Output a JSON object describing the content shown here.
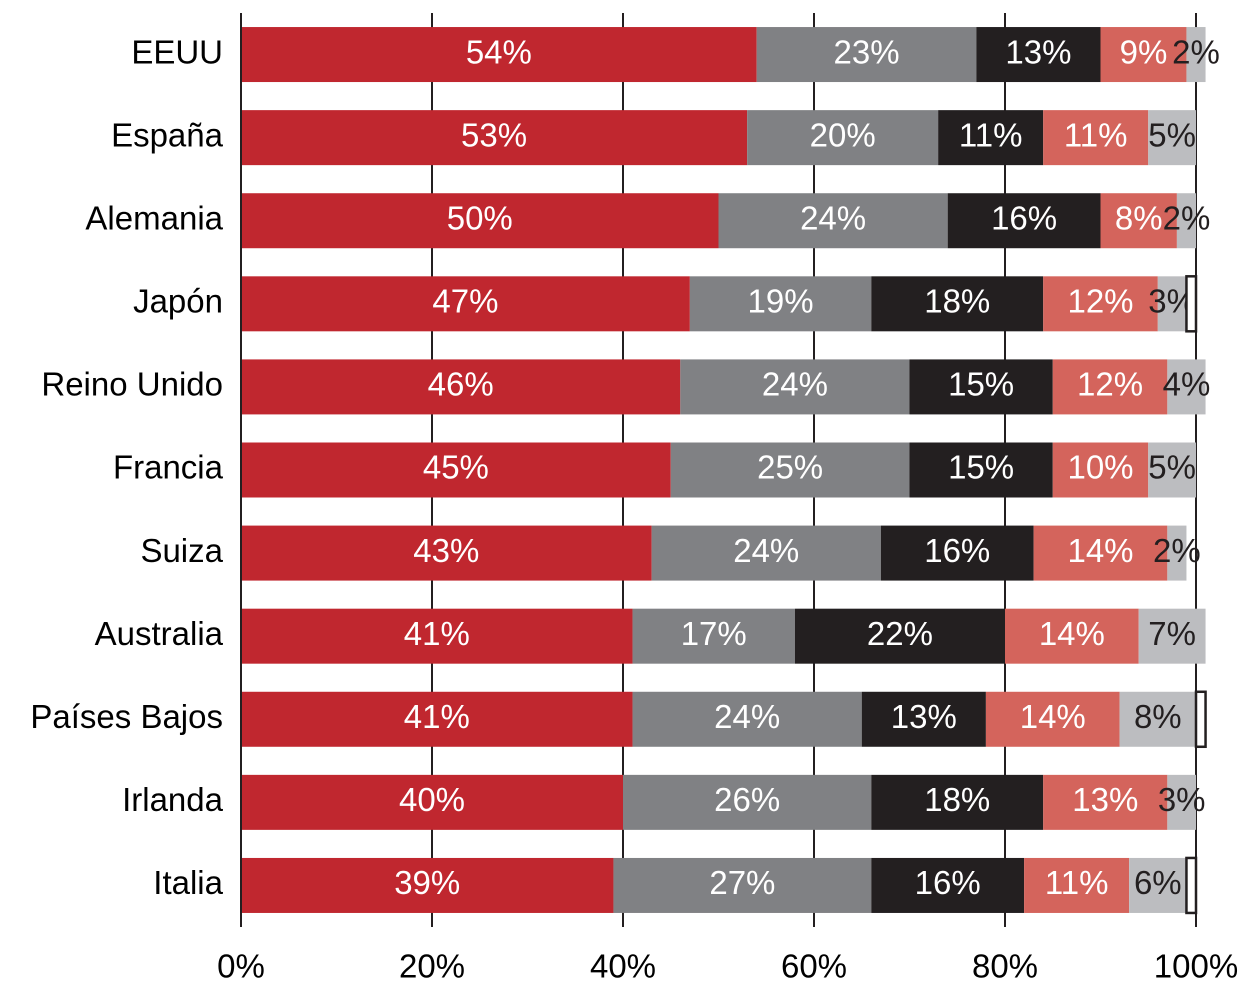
{
  "chart_data": {
    "type": "stacked_bar_horizontal",
    "categories": [
      "EEUU",
      "España",
      "Alemania",
      "Japón",
      "Reino Unido",
      "Francia",
      "Suiza",
      "Australia",
      "Países Bajos",
      "Irlanda",
      "Italia"
    ],
    "series": [
      {
        "color": "#c0272f",
        "values": [
          54,
          53,
          50,
          47,
          46,
          45,
          43,
          41,
          41,
          40,
          39
        ],
        "value_labels": [
          "54%",
          "53%",
          "50%",
          "47%",
          "46%",
          "45%",
          "43%",
          "41%",
          "41%",
          "40%",
          "39%"
        ]
      },
      {
        "color": "#808184",
        "values": [
          23,
          20,
          24,
          19,
          24,
          25,
          24,
          17,
          24,
          26,
          27
        ],
        "value_labels": [
          "23%",
          "20%",
          "24%",
          "19%",
          "24%",
          "25%",
          "24%",
          "17%",
          "24%",
          "26%",
          "27%"
        ]
      },
      {
        "color": "#231f20",
        "values": [
          13,
          11,
          16,
          18,
          15,
          15,
          16,
          22,
          13,
          18,
          16
        ],
        "value_labels": [
          "13%",
          "11%",
          "16%",
          "18%",
          "15%",
          "15%",
          "16%",
          "22%",
          "13%",
          "18%",
          "16%"
        ]
      },
      {
        "color": "#d4645c",
        "values": [
          9,
          11,
          8,
          12,
          12,
          10,
          14,
          14,
          14,
          13,
          11
        ],
        "value_labels": [
          "9%",
          "11%",
          "8%",
          "12%",
          "12%",
          "10%",
          "14%",
          "14%",
          "14%",
          "13%",
          "11%"
        ]
      },
      {
        "color": "#bcbdc0",
        "values": [
          2,
          5,
          2,
          3,
          4,
          5,
          2,
          7,
          8,
          3,
          6
        ],
        "value_labels": [
          "2%",
          "5%",
          "2%",
          "3%",
          "4%",
          "5%",
          "2%",
          "7%",
          "8%",
          "3%",
          "6%"
        ]
      },
      {
        "color": "#ffffff",
        "values": [
          0,
          0,
          0,
          1,
          0,
          0,
          0,
          0,
          1,
          0,
          1
        ]
      }
    ],
    "xlim": [
      0,
      100
    ],
    "xticks": [
      {
        "value": 0,
        "label": "0%"
      },
      {
        "value": 20,
        "label": "20%"
      },
      {
        "value": 40,
        "label": "40%"
      },
      {
        "value": 60,
        "label": "60%"
      },
      {
        "value": 80,
        "label": "80%"
      },
      {
        "value": 100,
        "label": "100%"
      }
    ],
    "grid": true
  }
}
